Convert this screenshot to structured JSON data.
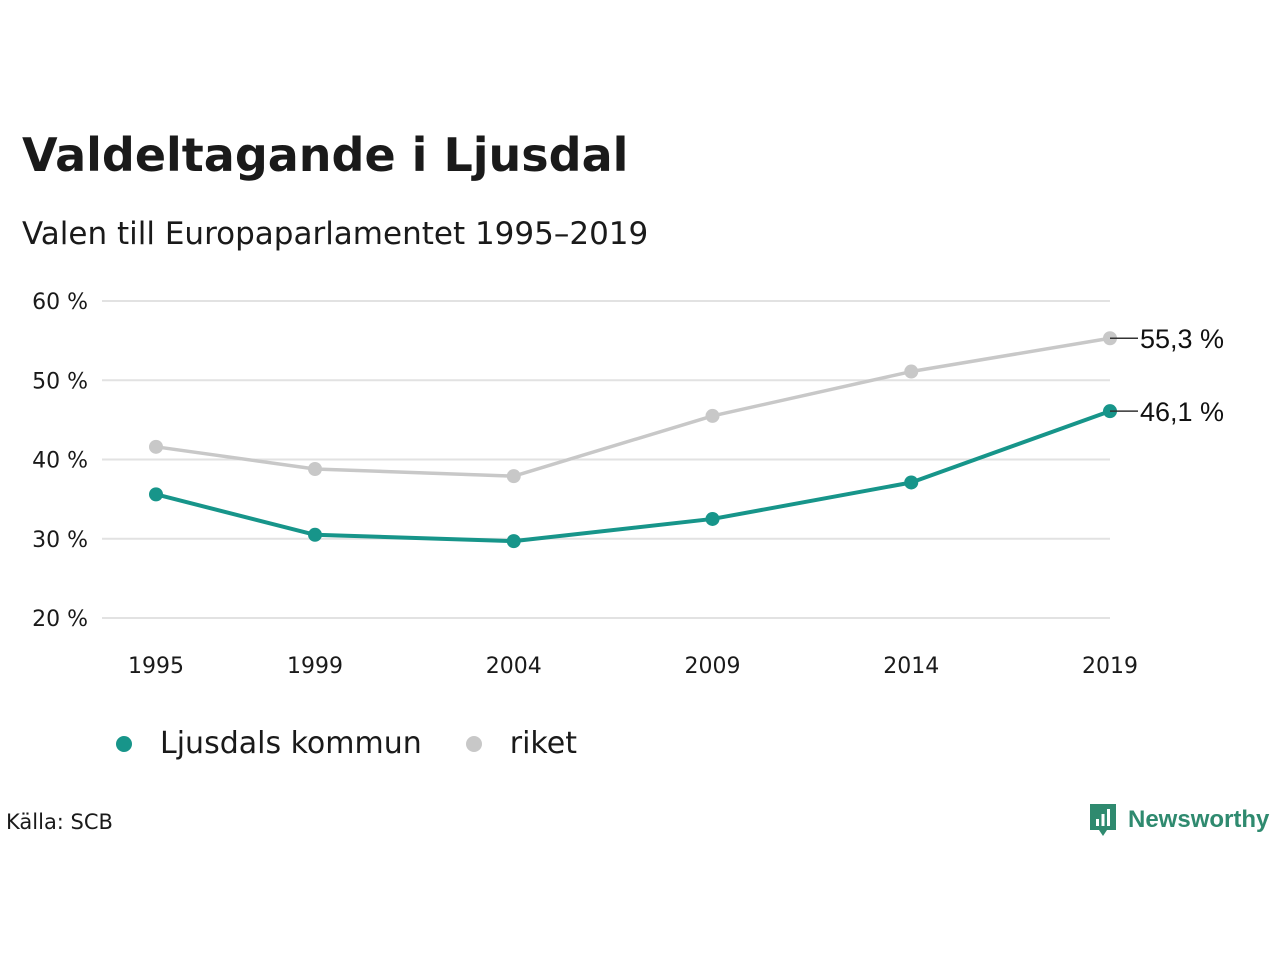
{
  "title": "Valdeltagande i Ljusdal",
  "subtitle": "Valen till Europaparlamentet 1995–2019",
  "source": "Källa: SCB",
  "brand": "Newsworthy",
  "colors": {
    "kommun": "#17958a",
    "riket": "#c8c8c8",
    "grid": "#e2e2e2",
    "brand": "#2f8a6f"
  },
  "chart_data": {
    "type": "line",
    "title": "Valdeltagande i Ljusdal",
    "subtitle": "Valen till Europaparlamentet 1995–2019",
    "x": [
      "1995",
      "1999",
      "2004",
      "2009",
      "2014",
      "2019"
    ],
    "x_numeric": [
      1995,
      1999,
      2004,
      2009,
      2014,
      2019
    ],
    "series": [
      {
        "name": "Ljusdals kommun",
        "values": [
          35.6,
          30.5,
          29.7,
          32.5,
          37.1,
          46.1
        ],
        "end_label": "46,1 %"
      },
      {
        "name": "riket",
        "values": [
          41.6,
          38.8,
          37.9,
          45.5,
          51.1,
          55.3
        ],
        "end_label": "55,3 %"
      }
    ],
    "y_ticks": [
      "20 %",
      "30 %",
      "40 %",
      "50 %",
      "60 %"
    ],
    "y_tick_values": [
      20,
      30,
      40,
      50,
      60
    ],
    "ylim": [
      20,
      60
    ],
    "grid": true,
    "legend": "bottom-left"
  }
}
